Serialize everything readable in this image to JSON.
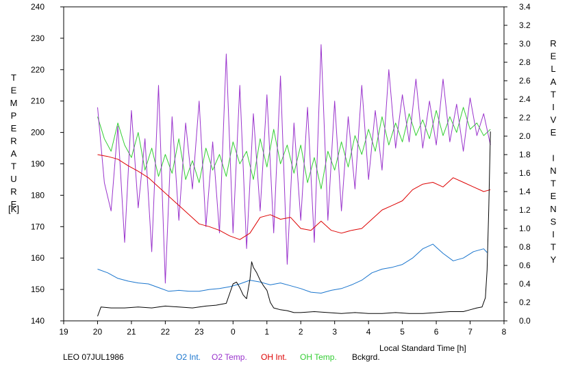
{
  "chart_data": {
    "type": "line",
    "title": "",
    "xlabel": "Local Standard Time [h]",
    "ylabel_left": "TEMPERATURE",
    "ylabel_left_unit": "[K]",
    "ylabel_right": "RELATIVE INTENSITY",
    "caption": "LEO 07JUL1986",
    "xlim": [
      19,
      32
    ],
    "ylim_left": [
      140,
      240
    ],
    "ylim_right": [
      0,
      3.4
    ],
    "x_tick_values": [
      19,
      20,
      21,
      22,
      23,
      24,
      25,
      26,
      27,
      28,
      29,
      30,
      31,
      32
    ],
    "x_tick_labels": [
      "19",
      "20",
      "21",
      "22",
      "23",
      "0",
      "1",
      "2",
      "3",
      "4",
      "5",
      "6",
      "7",
      "8"
    ],
    "y_left_ticks": [
      "140",
      "150",
      "160",
      "170",
      "180",
      "190",
      "200",
      "210",
      "220",
      "230",
      "240"
    ],
    "y_right_ticks": [
      "0.0",
      "0.2",
      "0.4",
      "0.6",
      "0.8",
      "1.0",
      "1.2",
      "1.4",
      "1.6",
      "1.8",
      "2.0",
      "2.2",
      "2.4",
      "2.6",
      "2.8",
      "3.0",
      "3.2",
      "3.4"
    ],
    "grid": false,
    "legend_position": "bottom",
    "series": [
      {
        "name": "O2 Int.",
        "color": "#1874cd",
        "axis": "right",
        "x": [
          20.0,
          20.3,
          20.6,
          20.9,
          21.2,
          21.5,
          21.8,
          22.1,
          22.4,
          22.7,
          23.0,
          23.3,
          23.6,
          23.9,
          24.2,
          24.5,
          24.8,
          25.1,
          25.4,
          25.7,
          26.0,
          26.3,
          26.6,
          26.9,
          27.2,
          27.5,
          27.8,
          28.1,
          28.4,
          28.7,
          29.0,
          29.3,
          29.6,
          29.9,
          30.2,
          30.5,
          30.8,
          31.1,
          31.4,
          31.5
        ],
        "y": [
          0.56,
          0.52,
          0.46,
          0.43,
          0.41,
          0.4,
          0.36,
          0.32,
          0.33,
          0.32,
          0.32,
          0.34,
          0.35,
          0.37,
          0.4,
          0.44,
          0.42,
          0.39,
          0.41,
          0.38,
          0.35,
          0.31,
          0.3,
          0.33,
          0.35,
          0.39,
          0.44,
          0.52,
          0.56,
          0.58,
          0.61,
          0.68,
          0.78,
          0.83,
          0.73,
          0.65,
          0.68,
          0.75,
          0.78,
          0.74
        ]
      },
      {
        "name": "O2 Temp.",
        "color": "#9932cc",
        "axis": "left",
        "x": [
          20.0,
          20.2,
          20.4,
          20.6,
          20.8,
          21.0,
          21.2,
          21.4,
          21.6,
          21.8,
          22.0,
          22.2,
          22.4,
          22.6,
          22.8,
          23.0,
          23.2,
          23.4,
          23.6,
          23.8,
          24.0,
          24.2,
          24.4,
          24.6,
          24.8,
          25.0,
          25.2,
          25.4,
          25.6,
          25.8,
          26.0,
          26.2,
          26.4,
          26.6,
          26.8,
          27.0,
          27.2,
          27.4,
          27.6,
          27.8,
          28.0,
          28.2,
          28.4,
          28.6,
          28.8,
          29.0,
          29.2,
          29.4,
          29.6,
          29.8,
          30.0,
          30.2,
          30.4,
          30.6,
          30.8,
          31.0,
          31.2,
          31.4,
          31.6
        ],
        "y": [
          208,
          184,
          175,
          202,
          165,
          207,
          176,
          198,
          162,
          215,
          152,
          205,
          172,
          203,
          182,
          210,
          170,
          197,
          168,
          225,
          168,
          215,
          163,
          206,
          175,
          212,
          168,
          218,
          158,
          203,
          172,
          208,
          165,
          228,
          172,
          210,
          175,
          205,
          182,
          215,
          185,
          207,
          188,
          220,
          195,
          212,
          197,
          217,
          195,
          210,
          196,
          217,
          197,
          209,
          194,
          211,
          199,
          206,
          196
        ]
      },
      {
        "name": "OH Int.",
        "color": "#dd0000",
        "axis": "right",
        "x": [
          20.0,
          20.3,
          20.6,
          20.9,
          21.2,
          21.5,
          21.8,
          22.1,
          22.4,
          22.7,
          23.0,
          23.3,
          23.6,
          23.9,
          24.2,
          24.5,
          24.8,
          25.1,
          25.4,
          25.7,
          26.0,
          26.3,
          26.6,
          26.9,
          27.2,
          27.5,
          27.8,
          28.1,
          28.4,
          28.7,
          29.0,
          29.3,
          29.6,
          29.9,
          30.2,
          30.5,
          30.8,
          31.1,
          31.4,
          31.6
        ],
        "y": [
          1.8,
          1.78,
          1.75,
          1.68,
          1.62,
          1.55,
          1.45,
          1.35,
          1.25,
          1.15,
          1.05,
          1.02,
          0.98,
          0.92,
          0.88,
          0.95,
          1.12,
          1.15,
          1.1,
          1.12,
          1.0,
          0.98,
          1.08,
          0.98,
          0.95,
          0.98,
          1.0,
          1.1,
          1.2,
          1.25,
          1.3,
          1.42,
          1.48,
          1.5,
          1.45,
          1.55,
          1.5,
          1.45,
          1.4,
          1.42
        ]
      },
      {
        "name": "OH Temp.",
        "color": "#32cd32",
        "axis": "left",
        "x": [
          20.0,
          20.2,
          20.4,
          20.6,
          20.8,
          21.0,
          21.2,
          21.4,
          21.6,
          21.8,
          22.0,
          22.2,
          22.4,
          22.6,
          22.8,
          23.0,
          23.2,
          23.4,
          23.6,
          23.8,
          24.0,
          24.2,
          24.4,
          24.6,
          24.8,
          25.0,
          25.2,
          25.4,
          25.6,
          25.8,
          26.0,
          26.2,
          26.4,
          26.6,
          26.8,
          27.0,
          27.2,
          27.4,
          27.6,
          27.8,
          28.0,
          28.2,
          28.4,
          28.6,
          28.8,
          29.0,
          29.2,
          29.4,
          29.6,
          29.8,
          30.0,
          30.2,
          30.4,
          30.6,
          30.8,
          31.0,
          31.2,
          31.4,
          31.6
        ],
        "y": [
          205,
          198,
          194,
          203,
          196,
          192,
          200,
          188,
          195,
          186,
          193,
          187,
          198,
          185,
          191,
          184,
          195,
          188,
          193,
          186,
          197,
          190,
          194,
          185,
          198,
          189,
          201,
          190,
          196,
          187,
          196,
          184,
          192,
          182,
          194,
          188,
          197,
          189,
          199,
          193,
          201,
          194,
          205,
          196,
          203,
          197,
          206,
          199,
          204,
          198,
          207,
          199,
          205,
          200,
          208,
          201,
          203,
          199,
          201
        ]
      },
      {
        "name": "Bckgrd.",
        "color": "#000000",
        "axis": "right",
        "x": [
          20.0,
          20.1,
          20.4,
          20.8,
          21.2,
          21.6,
          22.0,
          22.4,
          22.8,
          23.2,
          23.5,
          23.8,
          24.0,
          24.1,
          24.2,
          24.3,
          24.4,
          24.5,
          24.55,
          24.6,
          24.7,
          24.8,
          24.9,
          25.0,
          25.1,
          25.2,
          25.4,
          25.6,
          25.8,
          26.0,
          26.4,
          26.8,
          27.2,
          27.6,
          28.0,
          28.4,
          28.8,
          29.2,
          29.6,
          30.0,
          30.4,
          30.8,
          31.0,
          31.2,
          31.35,
          31.45,
          31.5,
          31.55,
          31.6
        ],
        "y": [
          0.05,
          0.15,
          0.14,
          0.14,
          0.15,
          0.14,
          0.16,
          0.15,
          0.14,
          0.16,
          0.17,
          0.19,
          0.4,
          0.42,
          0.36,
          0.28,
          0.24,
          0.45,
          0.64,
          0.58,
          0.52,
          0.44,
          0.38,
          0.33,
          0.2,
          0.14,
          0.12,
          0.11,
          0.09,
          0.09,
          0.1,
          0.09,
          0.08,
          0.09,
          0.08,
          0.08,
          0.09,
          0.08,
          0.08,
          0.09,
          0.1,
          0.1,
          0.12,
          0.14,
          0.15,
          0.25,
          0.55,
          1.2,
          2.05
        ]
      }
    ]
  }
}
